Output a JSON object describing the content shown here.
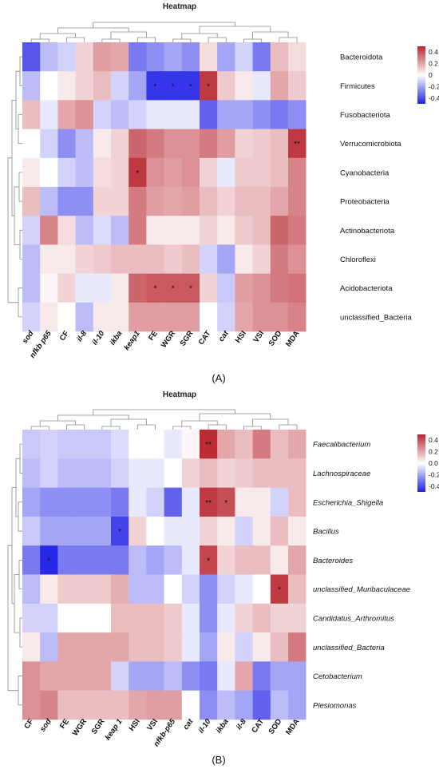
{
  "colors": {
    "low": "#1f1fe6",
    "mid": "#ffffff",
    "high": "#b8232d",
    "dendrogram": "#8a8a8a"
  },
  "chart_data": [
    {
      "type": "heatmap",
      "panel_label": "(A)",
      "title": "Heatmap",
      "columns": [
        "sod",
        "nfkb p65",
        "CF",
        "il-8",
        "il-10",
        "ikba",
        "keap1",
        "FE",
        "WGR",
        "SGR",
        "CAT",
        "cat",
        "HSI",
        "VSI",
        "SOD",
        "MDA"
      ],
      "column_italic": [
        true,
        true,
        false,
        true,
        true,
        true,
        true,
        false,
        false,
        false,
        false,
        true,
        false,
        false,
        false,
        false
      ],
      "rows": [
        "Bacteroidota",
        "Firmicutes",
        "Fusobacteriota",
        "Verrucomicrobiota",
        "Cyanobacteria",
        "Proteobacteria",
        "Actinobacteriota",
        "Chloroflexi",
        "Acidobacteriota",
        "unclassified_Bacteria"
      ],
      "row_italic": false,
      "values": [
        [
          -0.38,
          -0.15,
          -0.1,
          0.1,
          0.22,
          0.2,
          -0.3,
          -0.25,
          -0.2,
          -0.25,
          0.08,
          -0.2,
          -0.1,
          -0.3,
          0.15,
          0.08
        ],
        [
          -0.15,
          0.0,
          0.05,
          0.1,
          0.15,
          -0.1,
          -0.2,
          -0.45,
          -0.45,
          -0.45,
          0.45,
          0.12,
          0.05,
          -0.05,
          0.2,
          0.12
        ],
        [
          0.15,
          -0.05,
          0.2,
          0.25,
          -0.1,
          -0.15,
          -0.1,
          -0.05,
          -0.05,
          -0.05,
          -0.35,
          -0.2,
          -0.2,
          -0.25,
          -0.3,
          -0.25
        ],
        [
          0.0,
          -0.1,
          -0.25,
          -0.15,
          0.05,
          0.1,
          0.35,
          0.3,
          0.25,
          0.25,
          0.3,
          0.22,
          0.1,
          0.12,
          0.15,
          0.45
        ],
        [
          0.05,
          0.0,
          -0.1,
          -0.15,
          0.08,
          0.1,
          0.45,
          0.25,
          0.22,
          0.25,
          0.1,
          -0.05,
          0.12,
          0.12,
          0.15,
          0.28
        ],
        [
          0.15,
          -0.15,
          -0.25,
          -0.25,
          0.1,
          0.1,
          0.3,
          0.22,
          0.2,
          0.22,
          0.15,
          0.1,
          0.15,
          0.15,
          0.2,
          0.28
        ],
        [
          -0.1,
          0.28,
          0.08,
          -0.15,
          -0.08,
          -0.15,
          0.3,
          0.05,
          0.05,
          0.05,
          0.1,
          0.05,
          0.12,
          0.15,
          0.35,
          0.3
        ],
        [
          -0.15,
          0.05,
          0.05,
          0.1,
          0.12,
          0.15,
          0.15,
          0.15,
          0.12,
          0.15,
          -0.1,
          -0.2,
          0.05,
          0.1,
          0.3,
          0.25
        ],
        [
          -0.15,
          0.02,
          0.1,
          -0.05,
          -0.05,
          0.05,
          0.35,
          0.38,
          0.38,
          0.38,
          0.1,
          -0.12,
          0.22,
          0.25,
          0.3,
          0.32
        ],
        [
          -0.1,
          0.05,
          0.0,
          -0.15,
          0.05,
          0.05,
          0.22,
          0.22,
          0.22,
          0.22,
          0.0,
          -0.1,
          0.2,
          0.25,
          0.25,
          0.28
        ]
      ],
      "significance": [
        {
          "row": 1,
          "col": 7,
          "mark": "*"
        },
        {
          "row": 1,
          "col": 8,
          "mark": "*"
        },
        {
          "row": 1,
          "col": 9,
          "mark": "*"
        },
        {
          "row": 1,
          "col": 10,
          "mark": "*"
        },
        {
          "row": 3,
          "col": 15,
          "mark": "**"
        },
        {
          "row": 4,
          "col": 6,
          "mark": "*"
        },
        {
          "row": 8,
          "col": 7,
          "mark": "*"
        },
        {
          "row": 8,
          "col": 8,
          "mark": "*"
        },
        {
          "row": 8,
          "col": 9,
          "mark": "*"
        }
      ],
      "legend_ticks": [
        0.4,
        0.2,
        0,
        -0.2,
        -0.4
      ],
      "value_range": [
        -0.5,
        0.5
      ],
      "legend_placement": "top-right"
    },
    {
      "type": "heatmap",
      "panel_label": "(B)",
      "title": "Heatmap",
      "columns": [
        "CF",
        "sod",
        "FE",
        "WGR",
        "SGR",
        "keap 1",
        "HSI",
        "VSI",
        "nfkb-p65",
        "cat",
        "il-10",
        "ikba",
        "il-8",
        "CAT",
        "SOD",
        "MDA"
      ],
      "column_italic": [
        false,
        true,
        false,
        false,
        false,
        true,
        false,
        false,
        true,
        true,
        true,
        true,
        true,
        false,
        false,
        false
      ],
      "rows": [
        "Faecalibacterium",
        "Lachnospiraceae",
        "Escherichia_Shigella",
        "Bacillus",
        "Bacteroides",
        "unclassified_Muribaculaceae",
        "Candidatus_Arthromitus",
        "unclassified_Bacteria",
        "Cetobacterium",
        "Plesiomonas"
      ],
      "row_italic": true,
      "values": [
        [
          -0.12,
          -0.1,
          -0.12,
          -0.12,
          -0.12,
          -0.08,
          0.0,
          0.0,
          -0.05,
          0.02,
          0.48,
          0.2,
          0.15,
          0.3,
          0.15,
          0.2
        ],
        [
          -0.15,
          -0.1,
          -0.15,
          -0.15,
          -0.15,
          -0.1,
          -0.05,
          -0.05,
          0.0,
          0.1,
          0.15,
          0.1,
          0.12,
          0.15,
          0.15,
          0.15
        ],
        [
          -0.2,
          -0.25,
          -0.25,
          -0.25,
          -0.25,
          -0.3,
          -0.05,
          -0.1,
          -0.35,
          -0.05,
          0.45,
          0.4,
          0.05,
          0.05,
          -0.1,
          0.15
        ],
        [
          -0.12,
          -0.2,
          -0.2,
          -0.2,
          -0.2,
          -0.42,
          0.1,
          0.0,
          -0.05,
          -0.05,
          0.1,
          0.05,
          -0.1,
          0.05,
          0.15,
          0.05
        ],
        [
          -0.3,
          -0.48,
          -0.3,
          -0.3,
          -0.3,
          -0.3,
          -0.15,
          -0.2,
          -0.15,
          -0.05,
          0.42,
          0.1,
          0.15,
          0.15,
          0.05,
          0.2
        ],
        [
          -0.15,
          0.05,
          0.12,
          0.12,
          0.12,
          0.18,
          -0.15,
          -0.15,
          0.0,
          -0.1,
          -0.25,
          -0.1,
          -0.05,
          0.0,
          0.45,
          0.15
        ],
        [
          -0.1,
          -0.1,
          0.0,
          0.0,
          0.0,
          0.15,
          0.15,
          0.15,
          0.12,
          -0.05,
          -0.25,
          -0.05,
          0.1,
          0.15,
          0.1,
          0.1
        ],
        [
          0.05,
          -0.15,
          0.2,
          0.2,
          0.2,
          0.2,
          0.15,
          0.15,
          0.12,
          -0.05,
          -0.2,
          0.05,
          -0.1,
          0.05,
          0.15,
          0.3
        ],
        [
          0.25,
          0.2,
          0.2,
          0.2,
          0.2,
          -0.1,
          -0.2,
          -0.2,
          -0.15,
          -0.25,
          -0.3,
          -0.05,
          0.2,
          -0.3,
          -0.2,
          -0.2
        ],
        [
          0.25,
          0.28,
          0.15,
          0.15,
          0.15,
          0.15,
          0.2,
          0.22,
          0.22,
          0.0,
          -0.25,
          -0.15,
          -0.2,
          -0.35,
          -0.15,
          -0.2
        ]
      ],
      "significance": [
        {
          "row": 0,
          "col": 10,
          "mark": "**"
        },
        {
          "row": 2,
          "col": 10,
          "mark": "**"
        },
        {
          "row": 2,
          "col": 11,
          "mark": "*"
        },
        {
          "row": 3,
          "col": 5,
          "mark": "*"
        },
        {
          "row": 4,
          "col": 1,
          "mark": "*"
        },
        {
          "row": 4,
          "col": 10,
          "mark": "*"
        },
        {
          "row": 5,
          "col": 14,
          "mark": "*"
        }
      ],
      "legend_ticks": [
        0.4,
        0.2,
        0.0,
        -0.2,
        -0.4
      ],
      "legend_tick_labels": [
        "0.4",
        "0.2",
        "0.0",
        "-0.2",
        "-0.4"
      ],
      "value_range": [
        -0.5,
        0.5
      ],
      "legend_placement": "top-right"
    }
  ]
}
